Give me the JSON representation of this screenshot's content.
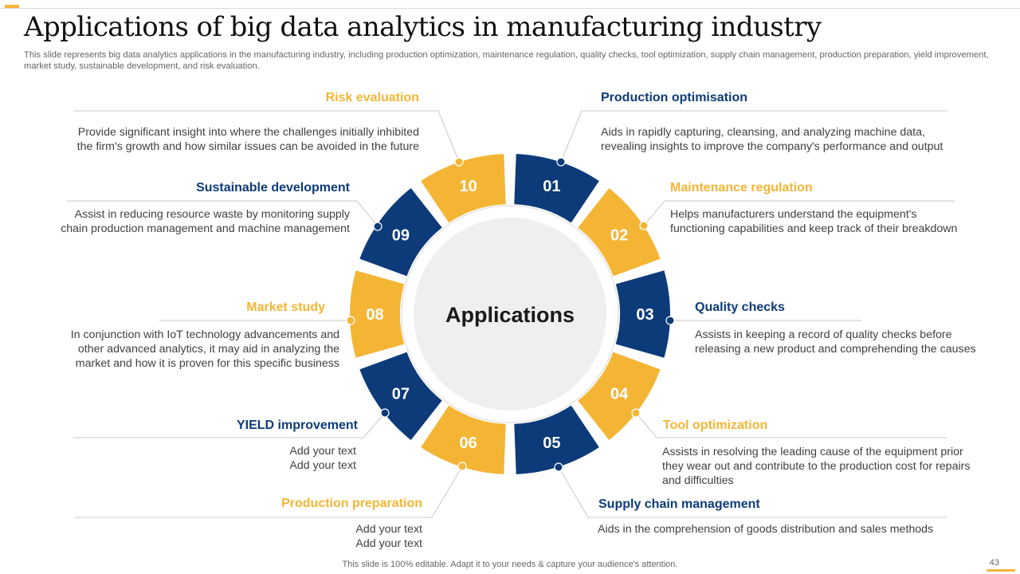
{
  "title": "Applications of big data analytics in manufacturing industry",
  "subtitle": "This slide represents big data analytics applications in the manufacturing industry, including production optimization, maintenance regulation, quality checks, tool optimization, supply chain management, production preparation, yield improvement, market study, sustainable development, and risk evaluation.",
  "center_label": "Applications",
  "colors": {
    "orange": "#f4b535",
    "navy": "#0d3b7a",
    "center_fill": "#efefef",
    "text": "#404040"
  },
  "segments": [
    {
      "num": "01",
      "heading": "Production optimisation",
      "desc": "Aids in rapidly capturing, cleansing, and analyzing machine data,\nrevealing insights to improve the company's performance and output"
    },
    {
      "num": "02",
      "heading": "Maintenance regulation",
      "desc": "Helps manufacturers understand the equipment's\nfunctioning capabilities and keep track of their breakdown"
    },
    {
      "num": "03",
      "heading": "Quality checks",
      "desc": "Assists in keeping a record of quality checks before\nreleasing a new product and comprehending the causes"
    },
    {
      "num": "04",
      "heading": "Tool optimization",
      "desc": "Assists in resolving the leading cause of the equipment prior\nthey wear out and contribute to the production cost for repairs\nand difficulties"
    },
    {
      "num": "05",
      "heading": "Supply chain management",
      "desc": "Aids in the comprehension of goods distribution and sales methods"
    },
    {
      "num": "06",
      "heading": "Production preparation",
      "desc": "Add your text\nAdd your text"
    },
    {
      "num": "07",
      "heading": "YIELD improvement",
      "desc": "Add your text\nAdd your text"
    },
    {
      "num": "08",
      "heading": "Market study",
      "desc": "In conjunction with IoT technology advancements and\nother advanced analytics, it may aid in analyzing the\nmarket and how it is proven for this specific business"
    },
    {
      "num": "09",
      "heading": "Sustainable development",
      "desc": "Assist in reducing resource waste by monitoring supply\nchain production management and machine management"
    },
    {
      "num": "10",
      "heading": "Risk evaluation",
      "desc": "Provide significant insight into where the challenges initially inhibited\nthe firm's growth and how similar issues can be avoided in the future"
    }
  ],
  "footer": "This slide is 100% editable. Adapt it to your needs & capture your audience's attention.",
  "page_number": "43"
}
